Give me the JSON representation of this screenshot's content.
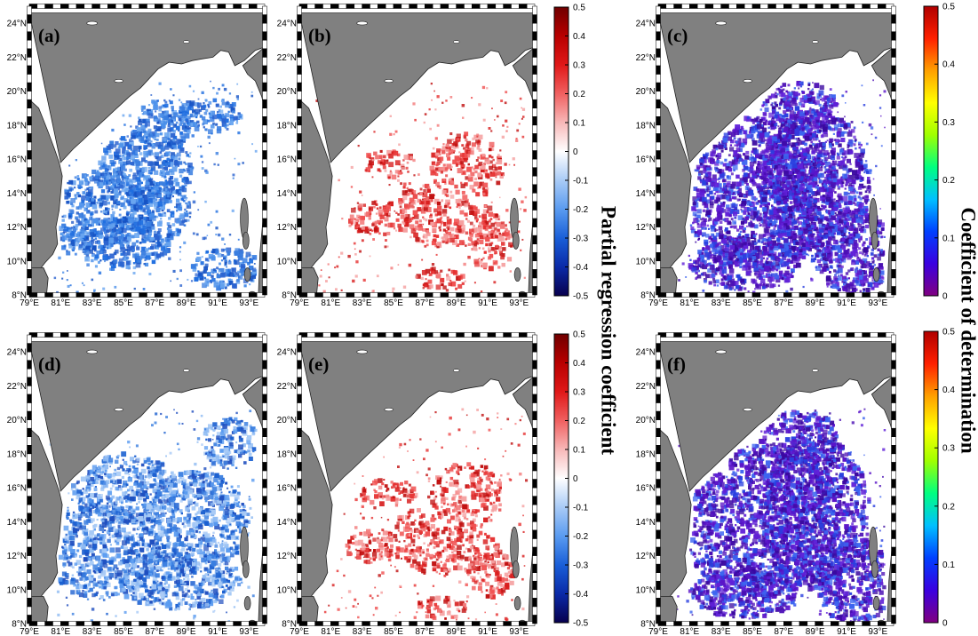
{
  "axes": {
    "lon_ticks": [
      "79°E",
      "81°E",
      "83°E",
      "85°E",
      "87°E",
      "89°E",
      "91°E",
      "93°E"
    ],
    "lat_ticks": [
      "8°N",
      "10°N",
      "12°N",
      "14°N",
      "16°N",
      "18°N",
      "20°N",
      "22°N",
      "24°N"
    ],
    "lon_range": [
      79,
      94
    ],
    "lat_range": [
      8,
      25
    ]
  },
  "panels": [
    {
      "label": "(a)",
      "kind": "regression",
      "sign": "negative"
    },
    {
      "label": "(b)",
      "kind": "regression",
      "sign": "positive"
    },
    {
      "label": "(c)",
      "kind": "determination"
    },
    {
      "label": "(d)",
      "kind": "regression",
      "sign": "negative"
    },
    {
      "label": "(e)",
      "kind": "regression",
      "sign": "positive"
    },
    {
      "label": "(f)",
      "kind": "determination"
    }
  ],
  "colorbars": {
    "regression": {
      "title": "Partial regression coefficient",
      "ticks": [
        "0.5",
        "0.4",
        "0.3",
        "0.2",
        "0.1",
        "0",
        "-0.1",
        "-0.2",
        "-0.3",
        "-0.4",
        "-0.5"
      ],
      "range": [
        -0.5,
        0.5
      ],
      "colors": [
        "#08004e",
        "#0a2aa8",
        "#1a5fd8",
        "#5a9bf0",
        "#a9cbf6",
        "#ffffff",
        "#f8b8b8",
        "#f06060",
        "#e01818",
        "#b80000",
        "#700000"
      ]
    },
    "determination": {
      "title": "Coefficient of determination",
      "ticks": [
        "0.5",
        "0.4",
        "0.3",
        "0.2",
        "0.1",
        "0"
      ],
      "range": [
        0,
        0.5
      ],
      "colors": [
        "#800080",
        "#3a00e0",
        "#0040ff",
        "#00c0ff",
        "#00ff80",
        "#a0ff00",
        "#ffff00",
        "#ffa000",
        "#ff2000",
        "#b00000"
      ]
    }
  },
  "colors": {
    "land": "#808080",
    "ocean_blank": "#ffffff",
    "regression_negative": "#3a7ee0",
    "regression_positive": "#e63232",
    "determination_low": "#4b0fb4"
  }
}
